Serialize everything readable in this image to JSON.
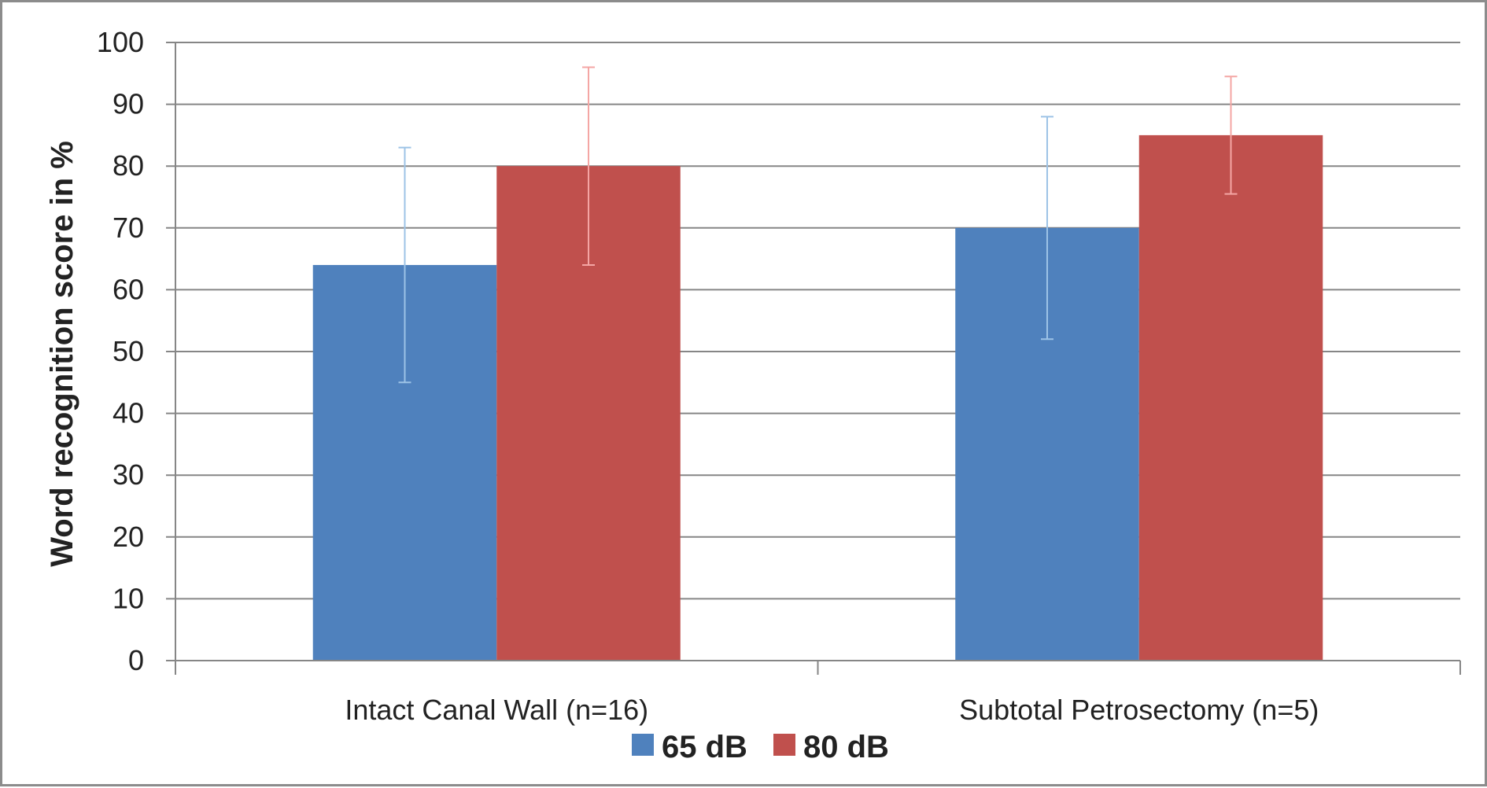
{
  "colors": {
    "series_65": "#4f81bd",
    "series_80": "#c0504d",
    "err_65": "#9dc3e6",
    "err_80": "#f4a6a4",
    "grid": "#868686",
    "axis": "#868686"
  },
  "chart_data": {
    "type": "bar",
    "title": "",
    "xlabel": "",
    "ylabel": "Word recognition score in %",
    "ylim": [
      0,
      100
    ],
    "ytick_step": 10,
    "yticks": [
      "0",
      "10",
      "20",
      "30",
      "40",
      "50",
      "60",
      "70",
      "80",
      "90",
      "100"
    ],
    "grid": true,
    "legend": "bottom",
    "categories": [
      "Intact Canal Wall (n=16)",
      "Subtotal Petrosectomy (n=5)"
    ],
    "series": [
      {
        "name": "65 dB",
        "values": [
          64,
          70
        ],
        "error_low": [
          45,
          52
        ],
        "error_high": [
          83,
          88
        ]
      },
      {
        "name": "80 dB",
        "values": [
          80,
          85
        ],
        "error_low": [
          64,
          75.5
        ],
        "error_high": [
          96,
          94.5
        ]
      }
    ]
  }
}
